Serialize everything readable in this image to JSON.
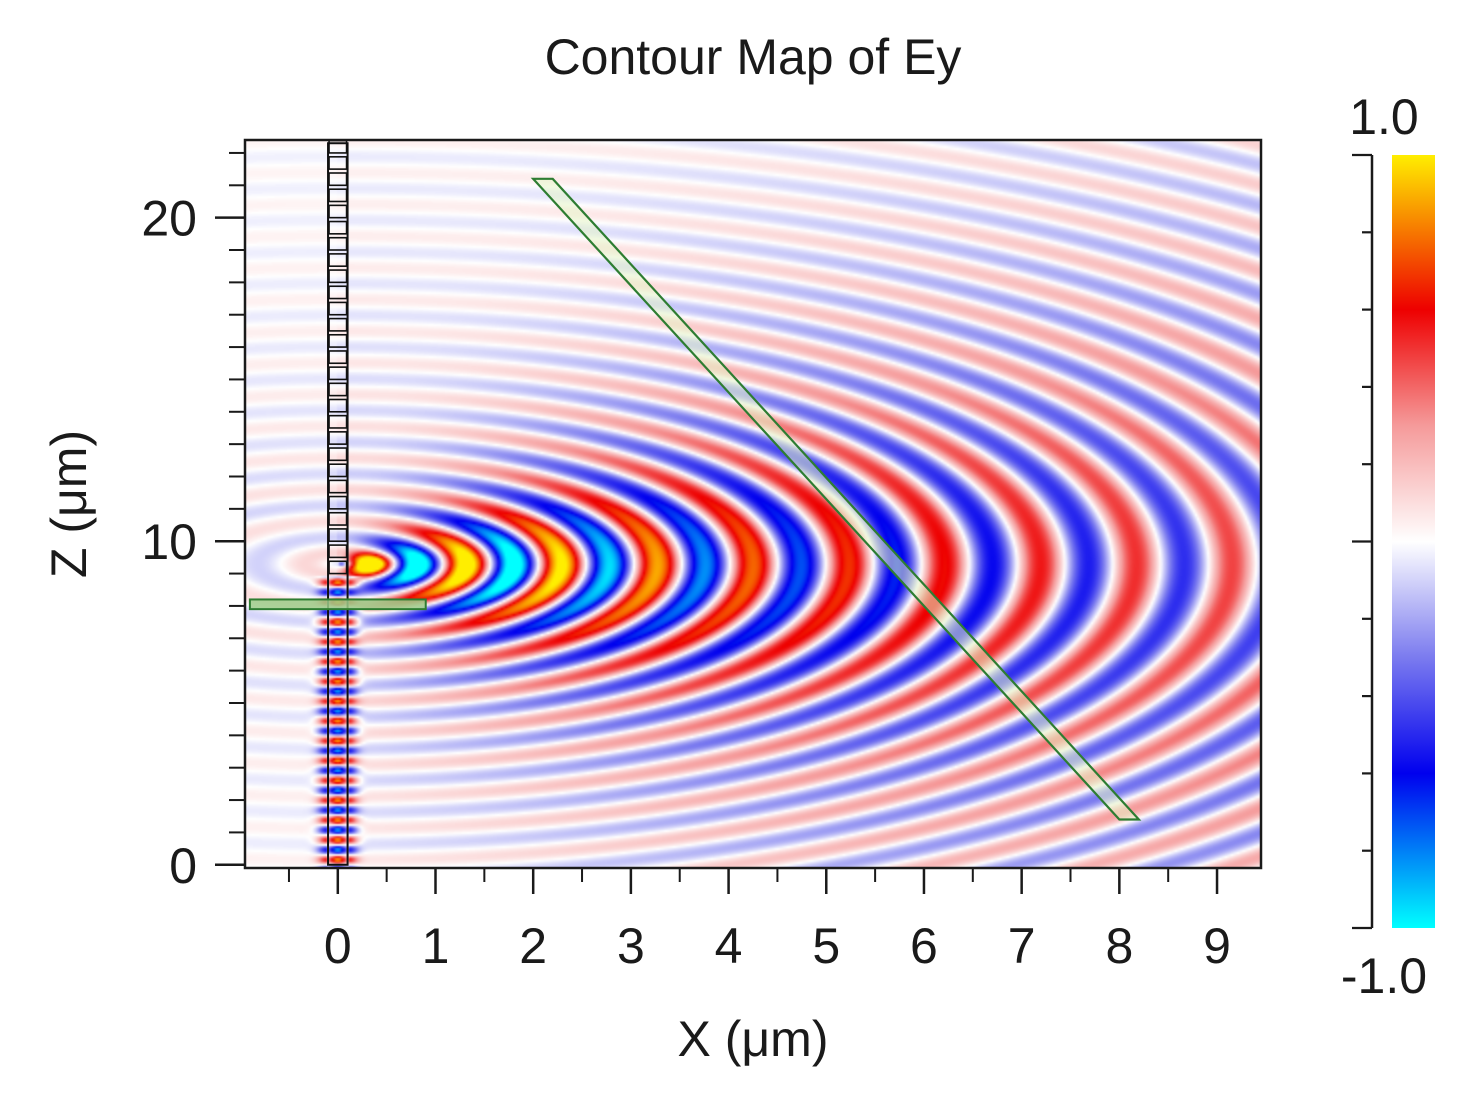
{
  "chart_data": {
    "type": "heatmap",
    "title": "Contour Map of Ey",
    "xlabel": "X (μm)",
    "ylabel": "Z (μm)",
    "xlim": [
      -0.95,
      9.45
    ],
    "ylim": [
      -0.1,
      22.4
    ],
    "x_ticks": [
      0,
      1,
      2,
      3,
      4,
      5,
      6,
      7,
      8,
      9
    ],
    "x_tick_labels": [
      "0",
      "1",
      "2",
      "3",
      "4",
      "5",
      "6",
      "7",
      "8",
      "9"
    ],
    "y_ticks": [
      0,
      10,
      20
    ],
    "y_tick_labels": [
      "0",
      "10",
      "20"
    ],
    "grid": false,
    "colorbar": {
      "min": -1.0,
      "max": 1.0,
      "max_label": "1.0",
      "min_label": "-1.0",
      "stops": [
        {
          "value": -1.0,
          "color": "#00ffff"
        },
        {
          "value": -0.6,
          "color": "#0000ee"
        },
        {
          "value": -0.3,
          "color": "#7b7bef"
        },
        {
          "value": 0.0,
          "color": "#ffffff"
        },
        {
          "value": 0.3,
          "color": "#f59a9a"
        },
        {
          "value": 0.6,
          "color": "#ee0000"
        },
        {
          "value": 1.0,
          "color": "#ffee00"
        }
      ]
    },
    "field": {
      "description": "cylindrical wave pattern emitted from grating coupler near x=0, z=9.5",
      "source_x": 0.0,
      "source_z": 9.3,
      "wavelength": 0.98
    },
    "structures": {
      "waveguide": {
        "x": [
          -0.1,
          0.1
        ],
        "z": [
          0,
          22.3
        ]
      },
      "horizontal_strip": {
        "x": [
          -0.9,
          0.9
        ],
        "z": [
          7.9,
          8.2
        ]
      },
      "diagonal_strip": {
        "from": [
          2.0,
          21.2
        ],
        "to": [
          8.0,
          1.4
        ],
        "width": 0.2
      }
    }
  }
}
